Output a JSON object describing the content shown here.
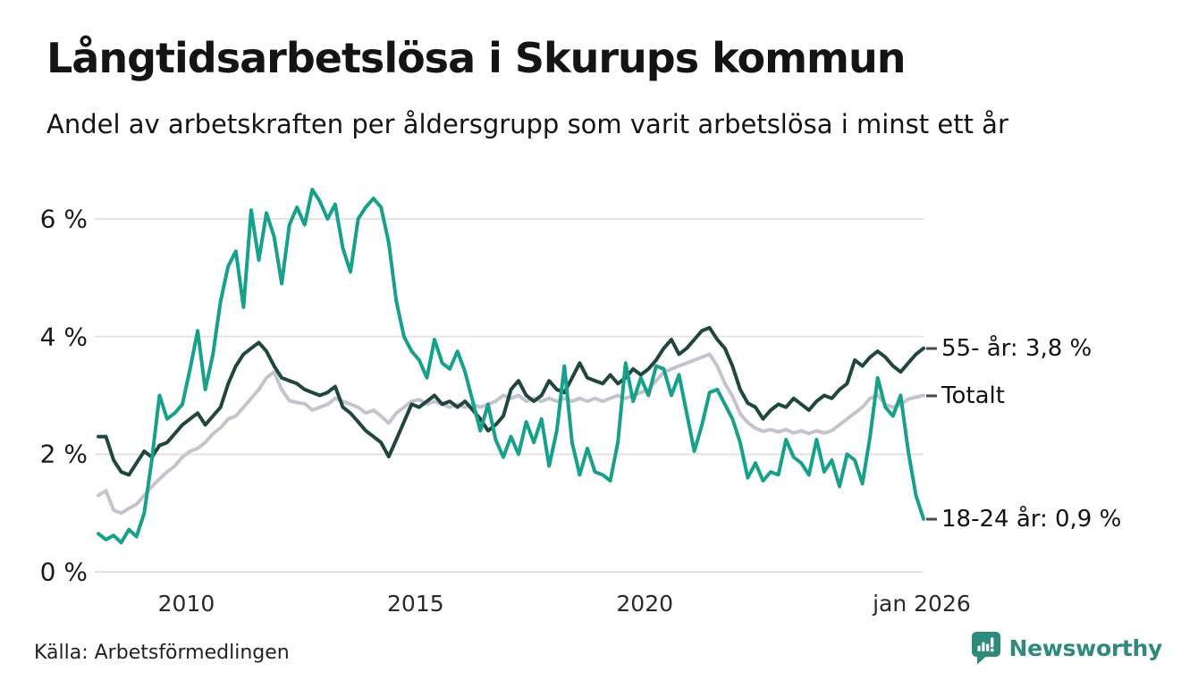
{
  "header": {
    "title": "Långtidsarbetslösa i Skurups kommun",
    "subtitle": "Andel av arbetskraften per åldersgrupp som varit arbetslösa i minst ett år"
  },
  "footer": {
    "source": "Källa: Arbetsförmedlingen",
    "brand_name": "Newsworthy",
    "brand_icon": "bar-chart-speech-bubble-icon"
  },
  "colors": {
    "teal": "#17a08a",
    "dark_green": "#20473e",
    "gray": "#c5c3d0",
    "grid": "#e3e3e3",
    "text": "#141414",
    "brand_teal": "#2e8b7b",
    "tick_dash": "#4a4a4a"
  },
  "chart_data": {
    "type": "line",
    "title": "Långtidsarbetslösa i Skurups kommun",
    "subtitle": "Andel av arbetskraften per åldersgrupp som varit arbetslösa i minst ett år",
    "x_start": 2008.08,
    "x_end": 2026.08,
    "x_note": "monthly share of labour force unemployed ≥ 1 year, points every 2 months",
    "ylim": [
      0,
      6.8
    ],
    "grid": "horizontal",
    "legend_position": "right-of-line-ends",
    "y_ticks": [
      {
        "label": "0 %",
        "value": 0
      },
      {
        "label": "2 %",
        "value": 2
      },
      {
        "label": "4 %",
        "value": 4
      },
      {
        "label": "6 %",
        "value": 6
      }
    ],
    "x_ticks": [
      {
        "label": "2010",
        "year": 2010
      },
      {
        "label": "2015",
        "year": 2015
      },
      {
        "label": "2020",
        "year": 2020
      },
      {
        "label": "jan 2026",
        "year": 2026.04
      }
    ],
    "series": [
      {
        "id": "totalt",
        "name": "Totalt",
        "end_label": "Totalt",
        "end_value": 3.0,
        "color_key": "gray",
        "stroke_width": 4,
        "values": [
          1.3,
          1.38,
          1.05,
          1.0,
          1.08,
          1.15,
          1.3,
          1.45,
          1.58,
          1.7,
          1.8,
          1.95,
          2.05,
          2.1,
          2.2,
          2.35,
          2.45,
          2.6,
          2.65,
          2.8,
          2.95,
          3.1,
          3.3,
          3.4,
          3.1,
          2.91,
          2.88,
          2.86,
          2.75,
          2.8,
          2.85,
          2.95,
          2.9,
          2.85,
          2.8,
          2.7,
          2.75,
          2.65,
          2.53,
          2.7,
          2.8,
          2.9,
          2.93,
          2.85,
          2.9,
          2.85,
          2.8,
          2.85,
          2.8,
          2.85,
          2.8,
          2.85,
          2.9,
          3.0,
          2.95,
          3.0,
          2.9,
          2.95,
          2.9,
          2.95,
          2.9,
          2.95,
          2.9,
          2.95,
          2.9,
          2.95,
          2.9,
          2.95,
          3.0,
          2.95,
          3.0,
          3.05,
          3.1,
          3.25,
          3.39,
          3.45,
          3.5,
          3.55,
          3.6,
          3.65,
          3.7,
          3.5,
          3.2,
          2.99,
          2.69,
          2.54,
          2.44,
          2.39,
          2.42,
          2.38,
          2.42,
          2.36,
          2.4,
          2.35,
          2.4,
          2.36,
          2.4,
          2.5,
          2.6,
          2.7,
          2.8,
          2.95,
          3.01,
          2.84,
          2.8,
          2.84,
          2.94,
          2.97,
          3.0
        ]
      },
      {
        "id": "55-ar",
        "name": "55- år",
        "end_label": "55- år: 3,8 %",
        "end_value": 3.8,
        "color_key": "dark_green",
        "stroke_width": 4,
        "values": [
          2.3,
          2.3,
          1.9,
          1.7,
          1.65,
          1.85,
          2.05,
          1.95,
          2.15,
          2.2,
          2.35,
          2.5,
          2.6,
          2.7,
          2.5,
          2.65,
          2.8,
          3.2,
          3.5,
          3.7,
          3.8,
          3.9,
          3.75,
          3.5,
          3.3,
          3.25,
          3.2,
          3.1,
          3.05,
          3.0,
          3.05,
          3.15,
          2.8,
          2.7,
          2.55,
          2.4,
          2.3,
          2.2,
          1.96,
          2.25,
          2.55,
          2.85,
          2.8,
          2.9,
          3.0,
          2.85,
          2.9,
          2.8,
          2.9,
          2.75,
          2.6,
          2.4,
          2.5,
          2.65,
          3.1,
          3.25,
          3.0,
          2.9,
          3.0,
          3.25,
          3.1,
          3.05,
          3.3,
          3.55,
          3.3,
          3.25,
          3.2,
          3.35,
          3.2,
          3.3,
          3.45,
          3.35,
          3.45,
          3.6,
          3.8,
          3.95,
          3.7,
          3.8,
          3.95,
          4.1,
          4.15,
          3.95,
          3.8,
          3.5,
          3.1,
          2.87,
          2.8,
          2.6,
          2.75,
          2.85,
          2.8,
          2.95,
          2.85,
          2.75,
          2.9,
          3.0,
          2.95,
          3.1,
          3.2,
          3.6,
          3.5,
          3.65,
          3.75,
          3.65,
          3.5,
          3.4,
          3.55,
          3.7,
          3.8
        ]
      },
      {
        "id": "18-24-ar",
        "name": "18-24 år",
        "end_label": "18-24 år: 0,9 %",
        "end_value": 0.9,
        "color_key": "teal",
        "stroke_width": 4,
        "values": [
          0.65,
          0.55,
          0.62,
          0.5,
          0.72,
          0.6,
          1.0,
          1.9,
          3.0,
          2.6,
          2.7,
          2.85,
          3.45,
          4.1,
          3.1,
          3.7,
          4.6,
          5.2,
          5.45,
          4.5,
          6.15,
          5.3,
          6.1,
          5.7,
          4.9,
          5.9,
          6.2,
          5.9,
          6.5,
          6.3,
          6.0,
          6.25,
          5.5,
          5.1,
          6.0,
          6.2,
          6.35,
          6.2,
          5.6,
          4.6,
          4.0,
          3.75,
          3.6,
          3.3,
          3.95,
          3.55,
          3.45,
          3.75,
          3.4,
          2.9,
          2.4,
          2.85,
          2.25,
          1.95,
          2.3,
          2.0,
          2.55,
          2.2,
          2.6,
          1.8,
          2.4,
          3.5,
          2.2,
          1.65,
          2.1,
          1.7,
          1.65,
          1.55,
          2.2,
          3.55,
          2.9,
          3.3,
          3.0,
          3.5,
          3.45,
          3.0,
          3.35,
          2.7,
          2.05,
          2.5,
          3.05,
          3.1,
          2.85,
          2.6,
          2.2,
          1.6,
          1.85,
          1.55,
          1.7,
          1.65,
          2.25,
          1.95,
          1.85,
          1.65,
          2.25,
          1.7,
          1.9,
          1.45,
          2.0,
          1.9,
          1.5,
          2.3,
          3.3,
          2.8,
          2.65,
          3.0,
          2.05,
          1.3,
          0.9
        ]
      }
    ]
  }
}
